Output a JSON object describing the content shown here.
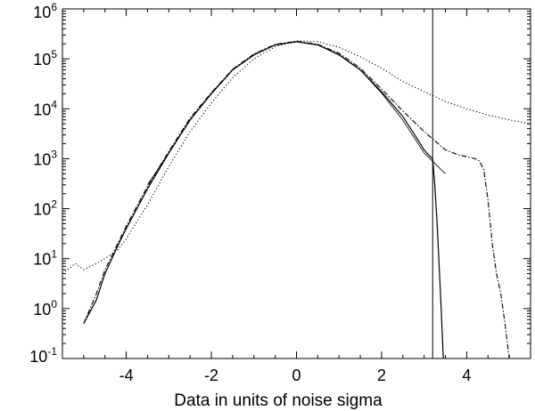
{
  "chart_data": {
    "type": "line",
    "title": "",
    "xlabel": "Data in units of noise sigma",
    "ylabel": "",
    "xlim": [
      -5.5,
      5.5
    ],
    "ylim": [
      0.1,
      1000000
    ],
    "yscale": "log",
    "grid": false,
    "legend": "none",
    "x_ticks": [
      {
        "value": -4,
        "label": "-4"
      },
      {
        "value": -2,
        "label": "-2"
      },
      {
        "value": 0,
        "label": "0"
      },
      {
        "value": 2,
        "label": "2"
      },
      {
        "value": 4,
        "label": "4"
      }
    ],
    "y_ticks": [
      {
        "value": 1000000,
        "base": "10",
        "exp": "6"
      },
      {
        "value": 100000,
        "base": "10",
        "exp": "5"
      },
      {
        "value": 10000,
        "base": "10",
        "exp": "4"
      },
      {
        "value": 1000,
        "base": "10",
        "exp": "3"
      },
      {
        "value": 100,
        "base": "10",
        "exp": "2"
      },
      {
        "value": 10,
        "base": "10",
        "exp": "1"
      },
      {
        "value": 1,
        "base": "10",
        "exp": "0"
      },
      {
        "value": 0.1,
        "base": "10",
        "exp": "-1"
      }
    ],
    "vline_x": 3.2,
    "series": [
      {
        "style": "solid",
        "x": [
          -5.0,
          -4.7,
          -4.5,
          -4.2,
          -4.0,
          -3.5,
          -3.0,
          -2.5,
          -2.0,
          -1.5,
          -1.0,
          -0.5,
          0.0,
          0.5,
          1.0,
          1.5,
          2.0,
          2.5,
          2.8,
          3.0,
          3.1,
          3.2,
          3.25,
          3.3,
          3.35,
          3.4,
          3.45
        ],
        "y": [
          0.5,
          1.5,
          5,
          18,
          40,
          250,
          1300,
          6000,
          20000,
          60000,
          120000,
          190000,
          220000,
          190000,
          120000,
          60000,
          22000,
          7000,
          2800,
          1500,
          1200,
          1000,
          300,
          60,
          8,
          1,
          0.1
        ]
      },
      {
        "style": "dash-dot",
        "x": [
          -5.0,
          -4.7,
          -4.5,
          -4.2,
          -4.0,
          -3.5,
          -3.0,
          -2.5,
          -2.0,
          -1.5,
          -1.0,
          -0.5,
          0.0,
          0.5,
          1.0,
          1.5,
          2.0,
          2.5,
          3.0,
          3.2,
          3.5,
          3.8,
          4.0,
          4.2,
          4.3,
          4.4,
          4.5,
          4.6,
          4.7,
          4.8,
          4.9,
          5.0
        ],
        "y": [
          0.5,
          2,
          6,
          20,
          45,
          280,
          1400,
          6500,
          21000,
          62000,
          125000,
          195000,
          225000,
          195000,
          130000,
          65000,
          25000,
          9000,
          3500,
          2500,
          1500,
          1200,
          1100,
          1000,
          900,
          600,
          150,
          20,
          5,
          2,
          0.5,
          0.1
        ]
      },
      {
        "style": "dotted",
        "x": [
          -5.5,
          -5.2,
          -5.0,
          -4.7,
          -4.5,
          -4.2,
          -4.0,
          -3.5,
          -3.0,
          -2.5,
          -2.0,
          -1.5,
          -1.0,
          -0.5,
          0.0,
          0.5,
          1.0,
          1.5,
          2.0,
          2.5,
          3.0,
          3.5,
          4.0,
          4.5,
          5.0,
          5.5
        ],
        "y": [
          5,
          8,
          6,
          8,
          10,
          15,
          25,
          120,
          700,
          3500,
          13000,
          42000,
          100000,
          175000,
          230000,
          220000,
          170000,
          110000,
          65000,
          35000,
          22000,
          14000,
          10000,
          7500,
          6000,
          5000
        ]
      },
      {
        "style": "thin-solid",
        "x": [
          -3.5,
          -3.0,
          -2.5,
          -2.0,
          -1.5,
          -1.0,
          -0.5,
          0.0,
          0.5,
          1.0,
          1.5,
          2.0,
          2.5,
          3.0,
          3.5
        ],
        "y": [
          300,
          1300,
          5900,
          20500,
          60000,
          122000,
          190000,
          220000,
          190000,
          122000,
          60000,
          20500,
          5900,
          1300,
          500
        ]
      }
    ]
  }
}
